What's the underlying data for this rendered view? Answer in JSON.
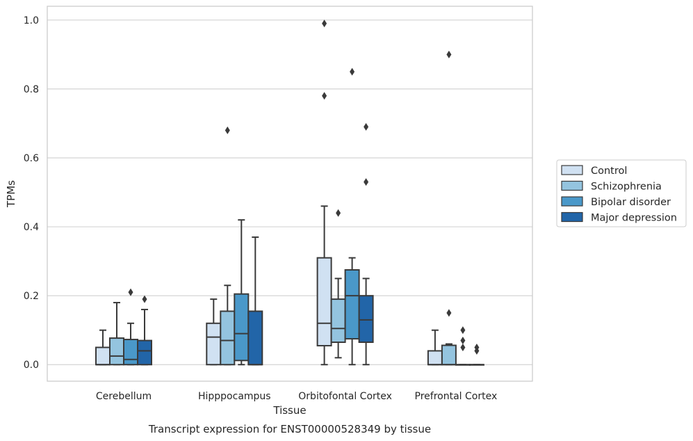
{
  "chart_data": {
    "type": "boxplot",
    "caption": "Transcript expression for ENST00000528349 by tissue",
    "xlabel": "Tissue",
    "ylabel": "TPMs",
    "ylim": [
      -0.048,
      1.04
    ],
    "yticks": [
      0.0,
      0.2,
      0.4,
      0.6,
      0.8,
      1.0
    ],
    "ytick_labels": [
      "0.0",
      "0.2",
      "0.4",
      "0.6",
      "0.8",
      "1.0"
    ],
    "grid": "horizontal",
    "legend_position": "right",
    "categories": [
      "Cerebellum",
      "Hipppocampus",
      "Orbitofontal Cortex",
      "Prefrontal Cortex"
    ],
    "series": [
      {
        "name": "Control",
        "color": "#d0e1f2",
        "boxes": [
          {
            "whislo": 0.0,
            "q1": 0.0,
            "med": 0.0,
            "q3": 0.05,
            "whishi": 0.1,
            "fliers": []
          },
          {
            "whislo": 0.0,
            "q1": 0.0,
            "med": 0.08,
            "q3": 0.12,
            "whishi": 0.19,
            "fliers": []
          },
          {
            "whislo": 0.0,
            "q1": 0.055,
            "med": 0.12,
            "q3": 0.31,
            "whishi": 0.46,
            "fliers": [
              0.78,
              0.99
            ]
          },
          {
            "whislo": 0.0,
            "q1": 0.0,
            "med": 0.0,
            "q3": 0.04,
            "whishi": 0.1,
            "fliers": []
          }
        ]
      },
      {
        "name": "Schizophrenia",
        "color": "#94c4df",
        "boxes": [
          {
            "whislo": 0.0,
            "q1": 0.0,
            "med": 0.025,
            "q3": 0.077,
            "whishi": 0.18,
            "fliers": []
          },
          {
            "whislo": 0.0,
            "q1": 0.0,
            "med": 0.07,
            "q3": 0.155,
            "whishi": 0.23,
            "fliers": [
              0.68
            ]
          },
          {
            "whislo": 0.02,
            "q1": 0.065,
            "med": 0.105,
            "q3": 0.19,
            "whishi": 0.25,
            "fliers": [
              0.44
            ]
          },
          {
            "whislo": 0.0,
            "q1": 0.0,
            "med": 0.0,
            "q3": 0.056,
            "whishi": 0.06,
            "fliers": [
              0.15,
              0.9
            ]
          }
        ]
      },
      {
        "name": "Bipolar disorder",
        "color": "#4a98c9",
        "boxes": [
          {
            "whislo": 0.0,
            "q1": 0.0,
            "med": 0.015,
            "q3": 0.073,
            "whishi": 0.12,
            "fliers": [
              0.21
            ]
          },
          {
            "whislo": 0.0,
            "q1": 0.012,
            "med": 0.09,
            "q3": 0.205,
            "whishi": 0.42,
            "fliers": []
          },
          {
            "whislo": 0.0,
            "q1": 0.075,
            "med": 0.2,
            "q3": 0.275,
            "whishi": 0.31,
            "fliers": [
              0.85
            ]
          },
          {
            "whislo": 0.0,
            "q1": 0.0,
            "med": 0.0,
            "q3": 0.0,
            "whishi": 0.0,
            "fliers": [
              0.05,
              0.07,
              0.1
            ]
          }
        ]
      },
      {
        "name": "Major depression",
        "color": "#2265a8",
        "boxes": [
          {
            "whislo": 0.0,
            "q1": 0.0,
            "med": 0.04,
            "q3": 0.07,
            "whishi": 0.16,
            "fliers": [
              0.19
            ]
          },
          {
            "whislo": 0.0,
            "q1": 0.0,
            "med": 0.0,
            "q3": 0.155,
            "whishi": 0.37,
            "fliers": []
          },
          {
            "whislo": 0.0,
            "q1": 0.065,
            "med": 0.13,
            "q3": 0.2,
            "whishi": 0.25,
            "fliers": [
              0.53,
              0.69
            ]
          },
          {
            "whislo": 0.0,
            "q1": 0.0,
            "med": 0.0,
            "q3": 0.0,
            "whishi": 0.0,
            "fliers": [
              0.04,
              0.05
            ]
          }
        ]
      }
    ]
  }
}
